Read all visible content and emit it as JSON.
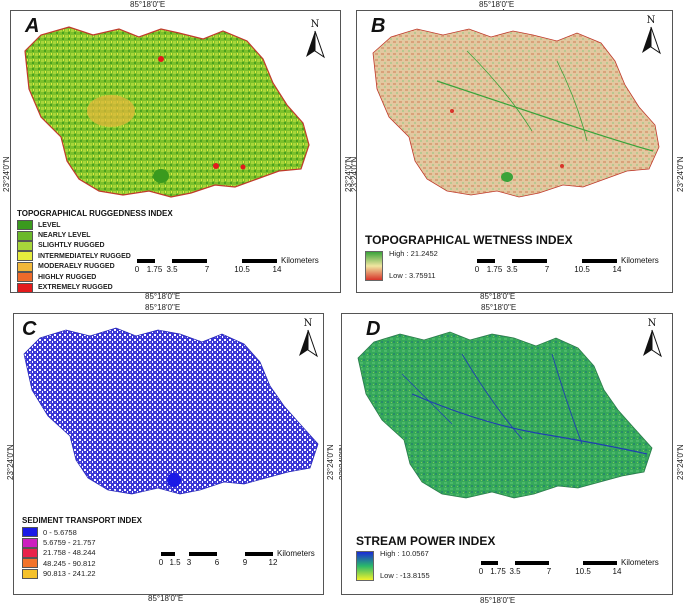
{
  "coords": {
    "lon_top": "85°18'0\"E",
    "lat": "23°24'0\"N"
  },
  "panels": {
    "A": {
      "label": "A",
      "legend_title": "TOPOGRAPHICAL RUGGEDNESS INDEX",
      "legend_items": [
        {
          "label": "LEVEL",
          "color": "#3a9a1e"
        },
        {
          "label": "NEARLY LEVEL",
          "color": "#6bb82a"
        },
        {
          "label": "SLIGHTLY RUGGED",
          "color": "#a7d63a"
        },
        {
          "label": "INTERMEDIATELY RUGGED",
          "color": "#e5ec3d"
        },
        {
          "label": "MODERAELY RUGGED",
          "color": "#f2b83a"
        },
        {
          "label": "HIGHLY RUGGED",
          "color": "#ee6a2a"
        },
        {
          "label": "EXTREMELY RUGGED",
          "color": "#e31a1c"
        }
      ],
      "scale_ticks": [
        "0",
        "1.75",
        "3.5",
        "7",
        "10.5",
        "14"
      ],
      "scale_unit": "Kilometers"
    },
    "B": {
      "label": "B",
      "legend_title": "TOPOGRAPHICAL WETNESS INDEX",
      "high": "High : 21.2452",
      "low": "Low : 3.75911",
      "ramp_top": "#3aa33a",
      "ramp_bottom": "#d8342a",
      "scale_ticks": [
        "0",
        "1.75",
        "3.5",
        "7",
        "10.5",
        "14"
      ],
      "scale_unit": "Kilometers"
    },
    "C": {
      "label": "C",
      "legend_title": "SEDIMENT TRANSPORT INDEX",
      "legend_items": [
        {
          "label": "0 - 5.6758",
          "color": "#1a1ae6"
        },
        {
          "label": "5.6759 - 21.757",
          "color": "#cc1fbf"
        },
        {
          "label": "21.758 - 48.244",
          "color": "#e8224a"
        },
        {
          "label": "48.245 - 90.812",
          "color": "#f2732a"
        },
        {
          "label": "90.813 - 241.22",
          "color": "#f5c12a"
        }
      ],
      "scale_ticks": [
        "0",
        "1.5",
        "3",
        "6",
        "9",
        "12"
      ],
      "scale_unit": "Kilometers"
    },
    "D": {
      "label": "D",
      "legend_title": "STREAM POWER INDEX",
      "high": "High : 10.0567",
      "low": "Low : -13.8155",
      "ramp_top": "#1a2bd6",
      "ramp_bottom": "#f2f22a",
      "scale_ticks": [
        "0",
        "1.75",
        "3.5",
        "7",
        "10.5",
        "14"
      ],
      "scale_unit": "Kilometers"
    }
  },
  "north_label": "N"
}
